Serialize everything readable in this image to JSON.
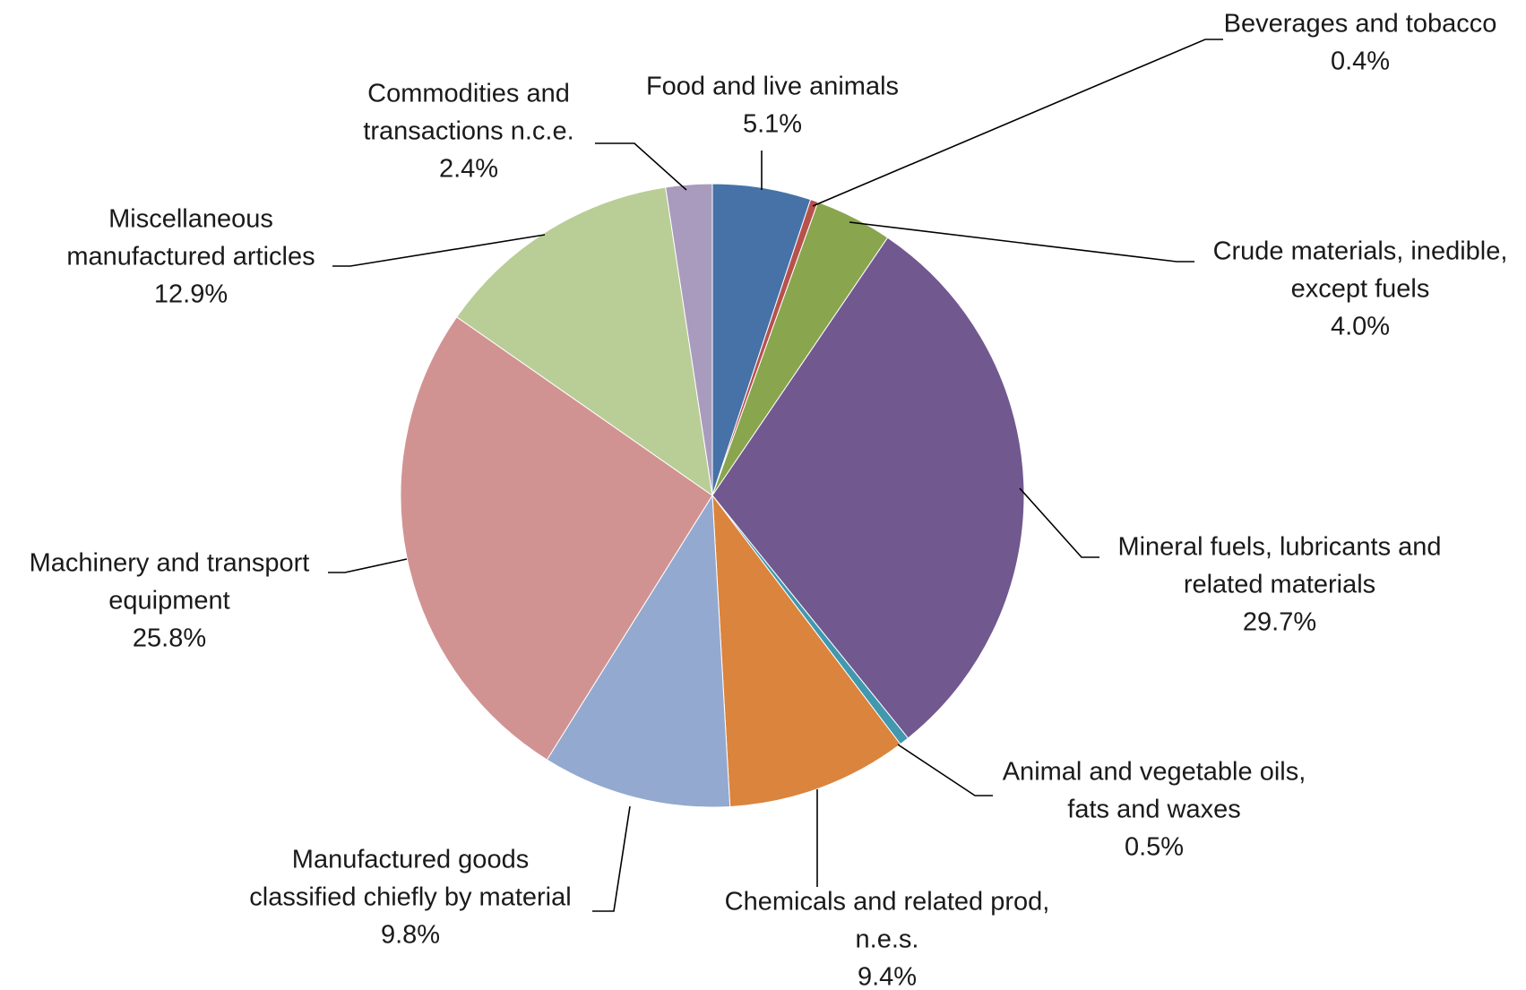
{
  "chart_data": {
    "type": "pie",
    "title": "",
    "legend": "none",
    "slices": [
      {
        "name_lines": [
          "Food and live animals"
        ],
        "value": 5.1,
        "label": "5.1%",
        "color": "#4672A8"
      },
      {
        "name_lines": [
          "Beverages and tobacco"
        ],
        "value": 0.4,
        "label": "0.4%",
        "color": "#B7514C"
      },
      {
        "name_lines": [
          "Crude materials, inedible,",
          "except fuels"
        ],
        "value": 4.0,
        "label": "4.0%",
        "color": "#89A54E"
      },
      {
        "name_lines": [
          "Mineral fuels, lubricants and",
          "related materials"
        ],
        "value": 29.7,
        "label": "29.7%",
        "color": "#71588F"
      },
      {
        "name_lines": [
          "Animal and vegetable oils,",
          "fats and waxes"
        ],
        "value": 0.5,
        "label": "0.5%",
        "color": "#4198AF"
      },
      {
        "name_lines": [
          "Chemicals and related prod,",
          "n.e.s."
        ],
        "value": 9.4,
        "label": "9.4%",
        "color": "#DB843D"
      },
      {
        "name_lines": [
          "Manufactured goods",
          "classified chiefly by material"
        ],
        "value": 9.8,
        "label": "9.8%",
        "color": "#93A9CF"
      },
      {
        "name_lines": [
          "Machinery and transport",
          "equipment"
        ],
        "value": 25.8,
        "label": "25.8%",
        "color": "#D19392"
      },
      {
        "name_lines": [
          "Miscellaneous",
          "manufactured articles"
        ],
        "value": 12.9,
        "label": "12.9%",
        "color": "#B9CD96"
      },
      {
        "name_lines": [
          "Commodities and",
          "transactions n.c.e."
        ],
        "value": 2.4,
        "label": "2.4%",
        "color": "#A99BBD"
      }
    ]
  }
}
